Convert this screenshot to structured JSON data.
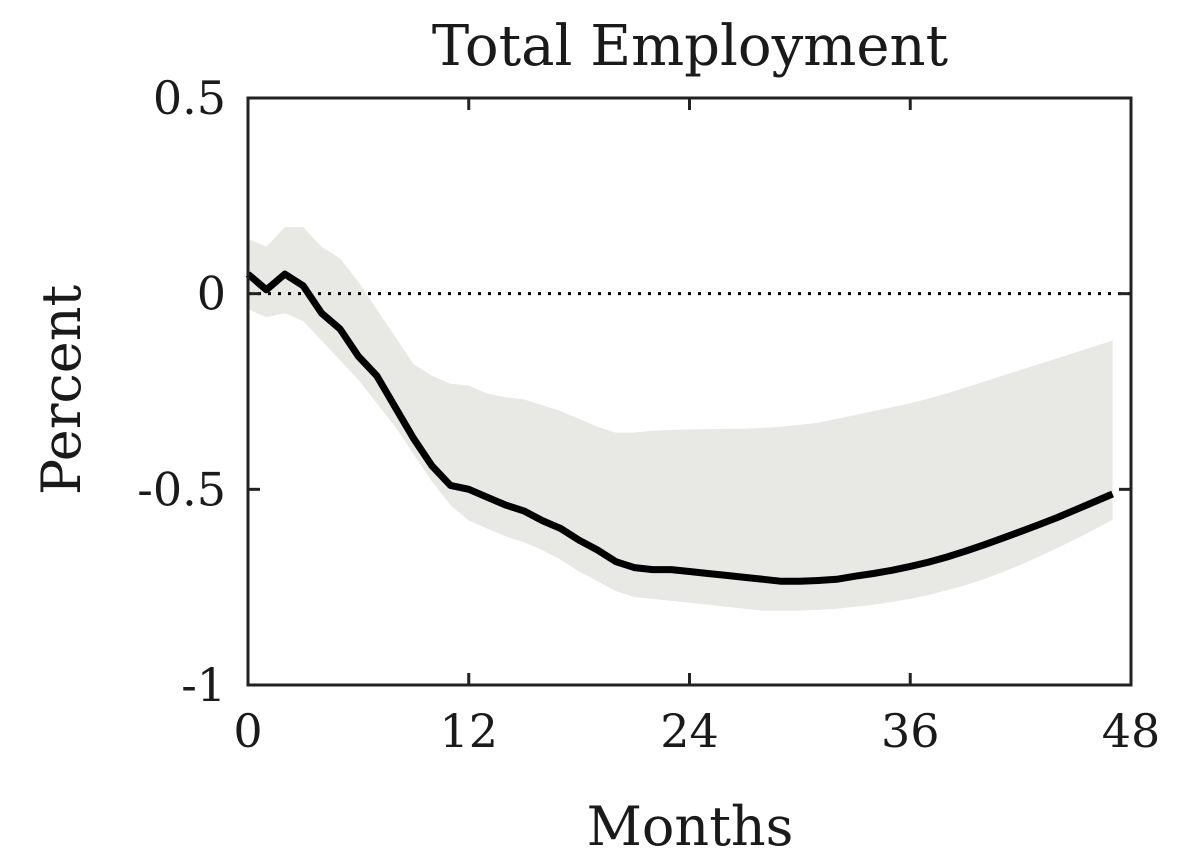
{
  "chart_data": {
    "type": "line",
    "title": "Total Employment",
    "xlabel": "Months",
    "ylabel": "Percent",
    "xlim": [
      0,
      47
    ],
    "ylim": [
      -1,
      0.5
    ],
    "x_ticks": [
      0,
      12,
      24,
      36,
      48
    ],
    "y_ticks": [
      0.5,
      0,
      -0.5,
      -1
    ],
    "y_tick_labels": [
      "0.5",
      "0",
      "-0.5",
      "-1"
    ],
    "zero_line": true,
    "grid": false,
    "colors": {
      "line": "#000000",
      "band": "#e8e8e5",
      "axis": "#222222"
    },
    "series": [
      {
        "role": "point-estimate",
        "x": [
          0,
          1,
          2,
          3,
          4,
          5,
          6,
          7,
          8,
          9,
          10,
          11,
          12,
          13,
          14,
          15,
          16,
          17,
          18,
          19,
          20,
          21,
          22,
          23,
          24,
          25,
          26,
          27,
          28,
          29,
          30,
          31,
          32,
          33,
          34,
          35,
          36,
          37,
          38,
          39,
          40,
          41,
          42,
          43,
          44,
          45,
          46,
          47
        ],
        "y": [
          0.05,
          0.01,
          0.05,
          0.02,
          -0.05,
          -0.09,
          -0.16,
          -0.21,
          -0.29,
          -0.37,
          -0.44,
          -0.49,
          -0.5,
          -0.52,
          -0.54,
          -0.555,
          -0.58,
          -0.6,
          -0.63,
          -0.655,
          -0.685,
          -0.7,
          -0.705,
          -0.705,
          -0.71,
          -0.715,
          -0.72,
          -0.725,
          -0.73,
          -0.735,
          -0.735,
          -0.733,
          -0.73,
          -0.722,
          -0.715,
          -0.707,
          -0.697,
          -0.686,
          -0.673,
          -0.658,
          -0.642,
          -0.625,
          -0.608,
          -0.59,
          -0.572,
          -0.552,
          -0.532,
          -0.512
        ]
      },
      {
        "role": "upper-band",
        "x": [
          0,
          1,
          2,
          3,
          4,
          5,
          6,
          7,
          8,
          9,
          10,
          11,
          12,
          13,
          14,
          15,
          16,
          17,
          18,
          19,
          20,
          21,
          22,
          23,
          24,
          25,
          26,
          27,
          28,
          29,
          30,
          31,
          32,
          33,
          34,
          35,
          36,
          37,
          38,
          39,
          40,
          41,
          42,
          43,
          44,
          45,
          46,
          47
        ],
        "y": [
          0.14,
          0.12,
          0.17,
          0.17,
          0.12,
          0.09,
          0.03,
          -0.04,
          -0.11,
          -0.18,
          -0.21,
          -0.23,
          -0.235,
          -0.255,
          -0.265,
          -0.27,
          -0.285,
          -0.3,
          -0.32,
          -0.34,
          -0.355,
          -0.355,
          -0.35,
          -0.348,
          -0.347,
          -0.346,
          -0.345,
          -0.345,
          -0.343,
          -0.34,
          -0.335,
          -0.33,
          -0.32,
          -0.31,
          -0.3,
          -0.29,
          -0.28,
          -0.268,
          -0.255,
          -0.24,
          -0.225,
          -0.21,
          -0.195,
          -0.18,
          -0.165,
          -0.15,
          -0.135,
          -0.12
        ]
      },
      {
        "role": "lower-band",
        "x": [
          0,
          1,
          2,
          3,
          4,
          5,
          6,
          7,
          8,
          9,
          10,
          11,
          12,
          13,
          14,
          15,
          16,
          17,
          18,
          19,
          20,
          21,
          22,
          23,
          24,
          25,
          26,
          27,
          28,
          29,
          30,
          31,
          32,
          33,
          34,
          35,
          36,
          37,
          38,
          39,
          40,
          41,
          42,
          43,
          44,
          45,
          46,
          47
        ],
        "y": [
          -0.04,
          -0.06,
          -0.05,
          -0.07,
          -0.12,
          -0.17,
          -0.22,
          -0.28,
          -0.34,
          -0.41,
          -0.48,
          -0.54,
          -0.58,
          -0.6,
          -0.62,
          -0.635,
          -0.655,
          -0.68,
          -0.71,
          -0.735,
          -0.76,
          -0.775,
          -0.78,
          -0.785,
          -0.79,
          -0.795,
          -0.8,
          -0.805,
          -0.81,
          -0.81,
          -0.81,
          -0.808,
          -0.805,
          -0.8,
          -0.795,
          -0.788,
          -0.78,
          -0.77,
          -0.758,
          -0.745,
          -0.73,
          -0.712,
          -0.693,
          -0.672,
          -0.65,
          -0.627,
          -0.603,
          -0.578
        ]
      }
    ]
  }
}
